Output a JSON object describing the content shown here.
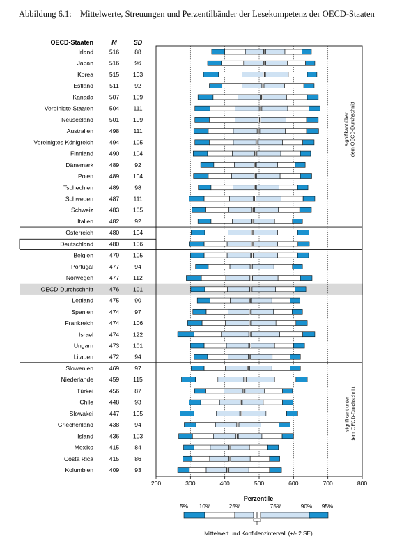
{
  "caption": {
    "number": "Abbildung 6.1:",
    "text": "Mittelwerte, Streuungen und Perzentilbänder der Lesekompetenz der OECD-Staaten"
  },
  "chart_data": {
    "type": "percentile-band",
    "headers": {
      "country": "OECD-Staaten",
      "mean": "M",
      "sd": "SD"
    },
    "x_ticks": [
      200,
      300,
      400,
      500,
      600,
      700,
      800
    ],
    "xlim": [
      200,
      800
    ],
    "x_axis_title": "Perzentile",
    "reference_lines": [
      300,
      400,
      500,
      600,
      700
    ],
    "colors": {
      "outer": "#1a92d0",
      "inner": "#cfe2f3",
      "whisker": "#ffffff",
      "highlight": "#d9d9d9"
    },
    "groups": {
      "above": "signifikant über dem OECD-Durchschnitt",
      "below": "signifikant unter dem OECD-Durchschnitt"
    },
    "rows": [
      {
        "country": "Irland",
        "mean": 516,
        "sd": 88,
        "p5": 362,
        "p10": 400,
        "p25": 460,
        "p75": 575,
        "p90": 625,
        "p95": 652
      },
      {
        "country": "Japan",
        "mean": 516,
        "sd": 96,
        "p5": 350,
        "p10": 390,
        "p25": 455,
        "p75": 582,
        "p90": 635,
        "p95": 662
      },
      {
        "country": "Korea",
        "mean": 515,
        "sd": 103,
        "p5": 338,
        "p10": 382,
        "p25": 450,
        "p75": 585,
        "p90": 640,
        "p95": 668
      },
      {
        "country": "Estland",
        "mean": 511,
        "sd": 92,
        "p5": 355,
        "p10": 392,
        "p25": 450,
        "p75": 574,
        "p90": 630,
        "p95": 660
      },
      {
        "country": "Kanada",
        "mean": 507,
        "sd": 109,
        "p5": 322,
        "p10": 366,
        "p25": 438,
        "p75": 580,
        "p90": 640,
        "p95": 672
      },
      {
        "country": "Vereinigte Staaten",
        "mean": 504,
        "sd": 111,
        "p5": 313,
        "p10": 357,
        "p25": 430,
        "p75": 583,
        "p90": 645,
        "p95": 677
      },
      {
        "country": "Neuseeland",
        "mean": 501,
        "sd": 109,
        "p5": 313,
        "p10": 355,
        "p25": 430,
        "p75": 578,
        "p90": 638,
        "p95": 672
      },
      {
        "country": "Australien",
        "mean": 498,
        "sd": 111,
        "p5": 310,
        "p10": 352,
        "p25": 425,
        "p75": 576,
        "p90": 638,
        "p95": 673
      },
      {
        "country": "Vereinigtes Königreich",
        "mean": 494,
        "sd": 105,
        "p5": 313,
        "p10": 355,
        "p25": 425,
        "p75": 568,
        "p90": 627,
        "p95": 660
      },
      {
        "country": "Finnland",
        "mean": 490,
        "sd": 104,
        "p5": 308,
        "p10": 350,
        "p25": 422,
        "p75": 563,
        "p90": 620,
        "p95": 650
      },
      {
        "country": "Dänemark",
        "mean": 489,
        "sd": 92,
        "p5": 330,
        "p10": 368,
        "p25": 428,
        "p75": 554,
        "p90": 605,
        "p95": 634
      },
      {
        "country": "Polen",
        "mean": 489,
        "sd": 104,
        "p5": 309,
        "p10": 352,
        "p25": 420,
        "p75": 561,
        "p90": 620,
        "p95": 653
      },
      {
        "country": "Tschechien",
        "mean": 489,
        "sd": 98,
        "p5": 323,
        "p10": 360,
        "p25": 424,
        "p75": 558,
        "p90": 612,
        "p95": 642
      },
      {
        "country": "Schweden",
        "mean": 487,
        "sd": 111,
        "p5": 296,
        "p10": 340,
        "p25": 414,
        "p75": 564,
        "p90": 628,
        "p95": 662
      },
      {
        "country": "Schweiz",
        "mean": 483,
        "sd": 105,
        "p5": 305,
        "p10": 345,
        "p25": 412,
        "p75": 556,
        "p90": 618,
        "p95": 652
      },
      {
        "country": "Italien",
        "mean": 482,
        "sd": 92,
        "p5": 322,
        "p10": 360,
        "p25": 422,
        "p75": 545,
        "p90": 597,
        "p95": 626
      },
      {
        "country": "Österreich",
        "mean": 480,
        "sd": 104,
        "p5": 302,
        "p10": 342,
        "p25": 410,
        "p75": 554,
        "p90": 612,
        "p95": 645
      },
      {
        "country": "Deutschland",
        "mean": 480,
        "sd": 106,
        "p5": 298,
        "p10": 340,
        "p25": 407,
        "p75": 554,
        "p90": 613,
        "p95": 646
      },
      {
        "country": "Belgien",
        "mean": 479,
        "sd": 105,
        "p5": 300,
        "p10": 340,
        "p25": 407,
        "p75": 554,
        "p90": 612,
        "p95": 644
      },
      {
        "country": "Portugal",
        "mean": 477,
        "sd": 94,
        "p5": 315,
        "p10": 352,
        "p25": 415,
        "p75": 543,
        "p90": 597,
        "p95": 626
      },
      {
        "country": "Norwegen",
        "mean": 477,
        "sd": 112,
        "p5": 288,
        "p10": 332,
        "p25": 403,
        "p75": 555,
        "p90": 620,
        "p95": 654
      },
      {
        "country": "OECD-Durchschnitt",
        "mean": 476,
        "sd": 101,
        "p5": 301,
        "p10": 342,
        "p25": 408,
        "p75": 548,
        "p90": 604,
        "p95": 636,
        "highlight": true
      },
      {
        "country": "Lettland",
        "mean": 475,
        "sd": 90,
        "p5": 320,
        "p10": 357,
        "p25": 416,
        "p75": 537,
        "p90": 590,
        "p95": 619
      },
      {
        "country": "Spanien",
        "mean": 474,
        "sd": 97,
        "p5": 307,
        "p10": 346,
        "p25": 410,
        "p75": 542,
        "p90": 596,
        "p95": 626
      },
      {
        "country": "Frankreich",
        "mean": 474,
        "sd": 106,
        "p5": 292,
        "p10": 334,
        "p25": 402,
        "p75": 549,
        "p90": 607,
        "p95": 640
      },
      {
        "country": "Israel",
        "mean": 474,
        "sd": 122,
        "p5": 263,
        "p10": 310,
        "p25": 390,
        "p75": 560,
        "p90": 627,
        "p95": 662
      },
      {
        "country": "Ungarn",
        "mean": 473,
        "sd": 101,
        "p5": 300,
        "p10": 340,
        "p25": 405,
        "p75": 545,
        "p90": 600,
        "p95": 632
      },
      {
        "country": "Litauen",
        "mean": 472,
        "sd": 94,
        "p5": 311,
        "p10": 350,
        "p25": 410,
        "p75": 538,
        "p90": 590,
        "p95": 620
      },
      {
        "country": "Slowenien",
        "mean": 469,
        "sd": 97,
        "p5": 302,
        "p10": 340,
        "p25": 402,
        "p75": 537,
        "p90": 590,
        "p95": 620
      },
      {
        "country": "Niederlande",
        "mean": 459,
        "sd": 115,
        "p5": 274,
        "p10": 315,
        "p25": 380,
        "p75": 545,
        "p90": 607,
        "p95": 640
      },
      {
        "country": "Türkei",
        "mean": 456,
        "sd": 87,
        "p5": 312,
        "p10": 345,
        "p25": 398,
        "p75": 515,
        "p90": 568,
        "p95": 597
      },
      {
        "country": "Chile",
        "mean": 448,
        "sd": 93,
        "p5": 296,
        "p10": 330,
        "p25": 385,
        "p75": 512,
        "p90": 568,
        "p95": 598
      },
      {
        "country": "Slowakei",
        "mean": 447,
        "sd": 105,
        "p5": 270,
        "p10": 310,
        "p25": 375,
        "p75": 520,
        "p90": 580,
        "p95": 612
      },
      {
        "country": "Griechenland",
        "mean": 438,
        "sd": 94,
        "p5": 282,
        "p10": 316,
        "p25": 373,
        "p75": 505,
        "p90": 558,
        "p95": 590
      },
      {
        "country": "Island",
        "mean": 436,
        "sd": 103,
        "p5": 266,
        "p10": 306,
        "p25": 367,
        "p75": 508,
        "p90": 567,
        "p95": 600
      },
      {
        "country": "Mexiko",
        "mean": 415,
        "sd": 84,
        "p5": 280,
        "p10": 310,
        "p25": 358,
        "p75": 472,
        "p90": 525,
        "p95": 556
      },
      {
        "country": "Costa Rica",
        "mean": 415,
        "sd": 86,
        "p5": 278,
        "p10": 305,
        "p25": 356,
        "p75": 474,
        "p90": 530,
        "p95": 560
      },
      {
        "country": "Kolumbien",
        "mean": 409,
        "sd": 93,
        "p5": 263,
        "p10": 297,
        "p25": 346,
        "p75": 470,
        "p90": 530,
        "p95": 565
      }
    ],
    "legend": {
      "labels": [
        "5%",
        "10%",
        "25%",
        "75%",
        "90%",
        "95%"
      ],
      "note": "Mittelwert und Konfidenzintervall (+/- 2 SE)"
    }
  }
}
